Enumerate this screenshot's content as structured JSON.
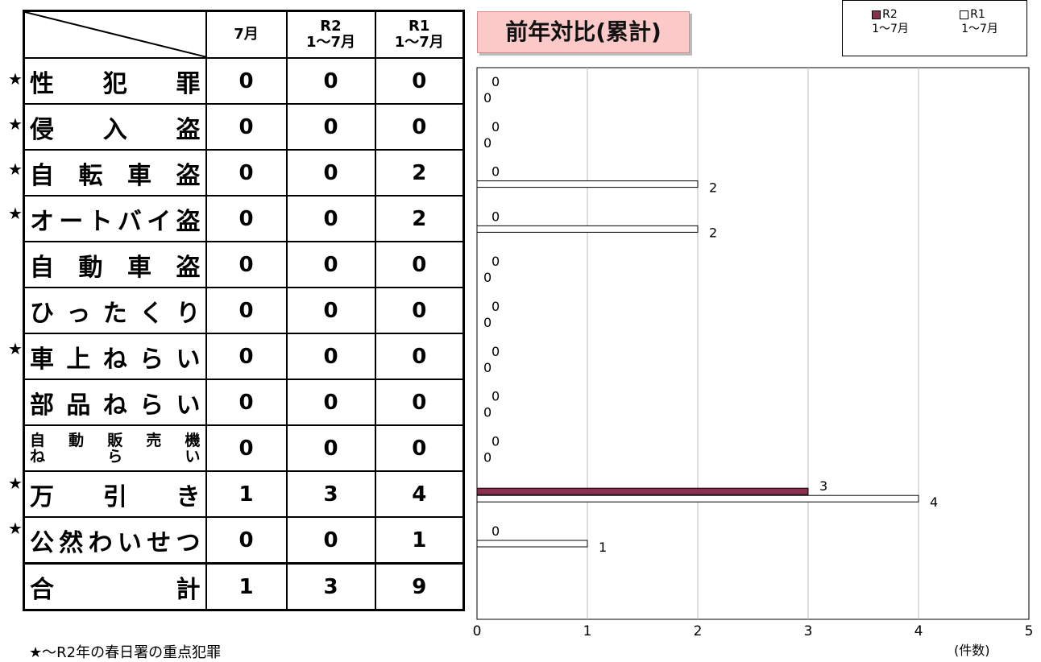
{
  "table": {
    "headers": [
      "",
      "7月",
      "R2\n1〜7月",
      "R1\n1〜7月"
    ],
    "rows": [
      {
        "star": true,
        "chars": [
          "性",
          "犯",
          "罪"
        ],
        "m7": "0",
        "r2": "0",
        "r1": "0"
      },
      {
        "star": true,
        "chars": [
          "侵",
          "入",
          "盗"
        ],
        "m7": "0",
        "r2": "0",
        "r1": "0"
      },
      {
        "star": true,
        "chars": [
          "自",
          "転",
          "車",
          "盗"
        ],
        "m7": "0",
        "r2": "0",
        "r1": "2"
      },
      {
        "star": true,
        "chars": [
          "オ",
          "ー",
          "ト",
          "バ",
          "イ",
          "盗"
        ],
        "m7": "0",
        "r2": "0",
        "r1": "2"
      },
      {
        "star": false,
        "chars": [
          "自",
          "動",
          "車",
          "盗"
        ],
        "m7": "0",
        "r2": "0",
        "r1": "0"
      },
      {
        "star": false,
        "chars": [
          "ひ",
          "っ",
          "た",
          "く",
          "り"
        ],
        "m7": "0",
        "r2": "0",
        "r1": "0"
      },
      {
        "star": true,
        "chars": [
          "車",
          "上",
          "ね",
          "ら",
          "い"
        ],
        "m7": "0",
        "r2": "0",
        "r1": "0"
      },
      {
        "star": false,
        "chars": [
          "部",
          "品",
          "ね",
          "ら",
          "い"
        ],
        "m7": "0",
        "r2": "0",
        "r1": "0"
      },
      {
        "star": false,
        "small": true,
        "line1": [
          "自",
          "動",
          "販",
          "売",
          "機"
        ],
        "line2": [
          "ね",
          "ら",
          "い"
        ],
        "m7": "0",
        "r2": "0",
        "r1": "0"
      },
      {
        "star": true,
        "chars": [
          "万",
          "引",
          "き"
        ],
        "m7": "1",
        "r2": "3",
        "r1": "4"
      },
      {
        "star": true,
        "chars": [
          "公",
          "然",
          "わ",
          "い",
          "せ",
          "つ"
        ],
        "m7": "0",
        "r2": "0",
        "r1": "1"
      },
      {
        "star": false,
        "chars": [
          "合",
          "計"
        ],
        "total": true,
        "m7": "1",
        "r2": "3",
        "r1": "9"
      }
    ],
    "star_symbol": "★",
    "footnote": "★〜R2年の春日署の重点犯罪"
  },
  "chart_data": {
    "type": "bar",
    "orientation": "horizontal",
    "title": "前年対比(累計)",
    "categories": [
      "性犯罪",
      "侵入盗",
      "自転車盗",
      "オートバイ盗",
      "自動車盗",
      "ひったくり",
      "車上ねらい",
      "部品ねらい",
      "自動販売機ねらい",
      "万引き",
      "公然わいせつ"
    ],
    "series": [
      {
        "name": "R2\n1〜7月",
        "values": [
          0,
          0,
          0,
          0,
          0,
          0,
          0,
          0,
          0,
          3,
          0
        ],
        "color": "#8c2e50"
      },
      {
        "name": "R1\n1〜7月",
        "values": [
          0,
          0,
          2,
          2,
          0,
          0,
          0,
          0,
          0,
          4,
          1
        ],
        "color": "#ffffff"
      }
    ],
    "xlim": [
      0,
      5
    ],
    "xticks": [
      "0",
      "1",
      "2",
      "3",
      "4",
      "5"
    ],
    "xlabel": "(件数)",
    "grid": true,
    "legend_position": "top-right"
  }
}
